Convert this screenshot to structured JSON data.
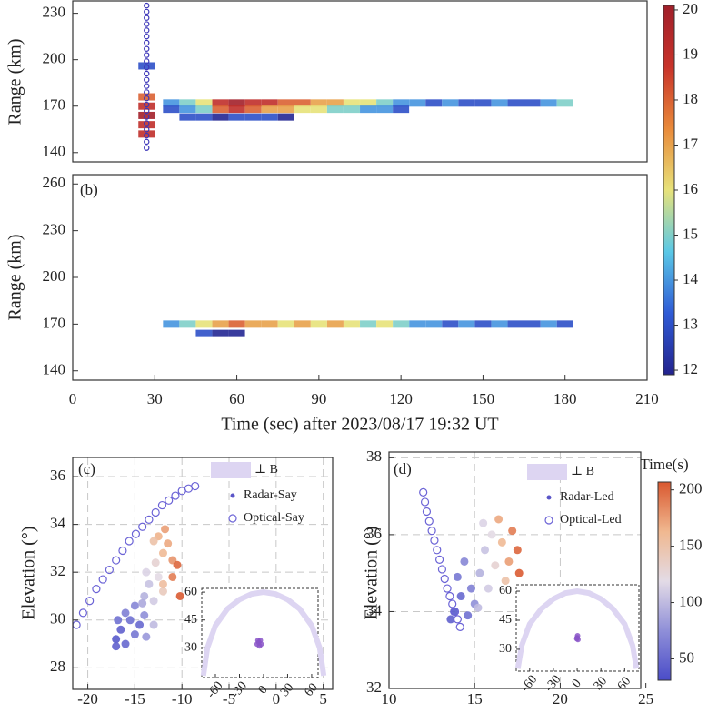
{
  "chart_data": [
    {
      "type": "heatmap",
      "ylabel": "Range (km)",
      "xlim": [
        0,
        210
      ],
      "ylim": [
        134,
        238
      ],
      "yticks": [
        140,
        170,
        200,
        230
      ],
      "cells": {
        "x": [
          36,
          42,
          48,
          54,
          60,
          66,
          72,
          78,
          84,
          90,
          96,
          102,
          108,
          114,
          120,
          126,
          132,
          138,
          144,
          150,
          156,
          162,
          168,
          174,
          180,
          36,
          42,
          48,
          54,
          60,
          66,
          72,
          78,
          84,
          90,
          96,
          102,
          108,
          114,
          120,
          42,
          48,
          54,
          60,
          66,
          72,
          78,
          27,
          27,
          27,
          27,
          27,
          27
        ],
        "y": [
          172,
          172,
          172,
          172,
          172,
          172,
          172,
          172,
          172,
          172,
          172,
          172,
          172,
          172,
          172,
          172,
          172,
          172,
          172,
          172,
          172,
          172,
          172,
          172,
          172,
          168,
          168,
          168,
          168,
          168,
          168,
          168,
          168,
          168,
          168,
          168,
          168,
          168,
          168,
          168,
          163,
          163,
          163,
          163,
          163,
          163,
          163,
          152,
          158,
          164,
          170,
          176,
          196
        ],
        "values": [
          14,
          15,
          16,
          19,
          20,
          19,
          19,
          18,
          18,
          17,
          17,
          16,
          16,
          15,
          14,
          14,
          13,
          14,
          13,
          13,
          14,
          13,
          13,
          14,
          15,
          13,
          14,
          15,
          18,
          19,
          18,
          17,
          17,
          16,
          16,
          15,
          15,
          14,
          14,
          13,
          13,
          13,
          12,
          13,
          13,
          13,
          12,
          19,
          19,
          20,
          19,
          18,
          13
        ]
      },
      "optical": {
        "color": "#3b35b8",
        "x": [
          27,
          27,
          27,
          27,
          27,
          27,
          27,
          27,
          27,
          27,
          27,
          27,
          27,
          27,
          27,
          27,
          27,
          27,
          27,
          27,
          27,
          27,
          27,
          27
        ],
        "y": [
          143,
          147,
          151,
          155,
          159,
          163,
          167,
          171,
          175,
          179,
          183,
          187,
          191,
          195,
          199,
          203,
          207,
          211,
          215,
          219,
          223,
          227,
          231,
          235
        ]
      },
      "colormap": [
        "#23238e",
        "#2f5bd6",
        "#5ac8e6",
        "#e7e27a",
        "#e98a3a",
        "#c8332a",
        "#a01f2a"
      ],
      "clim": [
        11.9,
        20.1
      ],
      "cticks": [
        12,
        13,
        14,
        15,
        16,
        17,
        18,
        19,
        20
      ]
    },
    {
      "type": "heatmap",
      "panel_label": "(b)",
      "ylabel": "Range (km)",
      "xlabel": "Time (sec) after 2023/08/17 19:32 UT",
      "xlim": [
        0,
        210
      ],
      "ylim": [
        134,
        266
      ],
      "xticks": [
        0,
        30,
        60,
        90,
        120,
        150,
        180,
        210
      ],
      "yticks": [
        140,
        170,
        200,
        230,
        260
      ],
      "cells": {
        "x": [
          36,
          42,
          48,
          54,
          60,
          66,
          72,
          78,
          84,
          90,
          96,
          102,
          108,
          114,
          120,
          126,
          132,
          138,
          144,
          150,
          156,
          162,
          168,
          174,
          180,
          48,
          54,
          60
        ],
        "y": [
          170,
          170,
          170,
          170,
          170,
          170,
          170,
          170,
          170,
          170,
          170,
          170,
          170,
          170,
          170,
          170,
          170,
          170,
          170,
          170,
          170,
          170,
          170,
          170,
          170,
          164,
          164,
          164
        ],
        "values": [
          14,
          15,
          16,
          17,
          18,
          17,
          17,
          16,
          17,
          16,
          17,
          16,
          15,
          16,
          15,
          14,
          14,
          13,
          14,
          13,
          14,
          13,
          13,
          14,
          13,
          13,
          12,
          12
        ]
      },
      "colormap": [
        "#23238e",
        "#2f5bd6",
        "#5ac8e6",
        "#e7e27a",
        "#e98a3a",
        "#c8332a",
        "#a01f2a"
      ],
      "clim": [
        11.9,
        20.1
      ]
    },
    {
      "type": "scatter",
      "panel_label": "(c)",
      "ylabel": "Elevation (°)",
      "xlim": [
        -21.6,
        6
      ],
      "ylim": [
        27.1,
        36.8
      ],
      "xticks": [
        -20,
        -15,
        -10,
        -5,
        0,
        5
      ],
      "yticks": [
        28,
        30,
        32,
        34,
        36
      ],
      "grid": true,
      "perp_b": {
        "name": "⊥ B",
        "color": "#ddd5f2"
      },
      "series": [
        {
          "name": "Radar-Say",
          "color": "#5a55c8",
          "x": [
            -17,
            -16.5,
            -16,
            -15.5,
            -15,
            -14.5,
            -16,
            -15,
            -14,
            -17,
            -13.8,
            -16.8,
            -14,
            -13.5,
            -13,
            -12.5,
            -13.8,
            -12.8,
            -14.2,
            -12,
            -13,
            -12,
            -11.5,
            -11,
            -12.5,
            -11,
            -10.5,
            -12,
            -11.8,
            -10.2,
            -13
          ],
          "y": [
            29.2,
            29.6,
            29.0,
            30.0,
            29.4,
            29.8,
            30.3,
            30.6,
            30.2,
            28.9,
            29.3,
            30.0,
            31.0,
            31.5,
            30.8,
            31.8,
            32.0,
            32.4,
            30.7,
            31.2,
            29.8,
            32.8,
            33.2,
            32.5,
            33.5,
            31.8,
            32.3,
            31.5,
            33.8,
            31.0,
            33.3
          ],
          "time": [
            40,
            45,
            50,
            55,
            60,
            50,
            65,
            70,
            75,
            45,
            80,
            55,
            95,
            105,
            110,
            120,
            115,
            130,
            90,
            140,
            100,
            160,
            170,
            180,
            165,
            190,
            200,
            155,
            175,
            205,
            150
          ]
        },
        {
          "name": "Optical-Say",
          "color": "#6b63d6",
          "x": [
            -21.2,
            -20.5,
            -19.8,
            -19.1,
            -18.4,
            -17.7,
            -17.0,
            -16.3,
            -15.6,
            -14.9,
            -14.2,
            -13.5,
            -12.8,
            -12.1,
            -11.4,
            -10.7,
            -10.0,
            -9.3,
            -8.6
          ],
          "y": [
            29.8,
            30.3,
            30.8,
            31.3,
            31.7,
            32.1,
            32.5,
            32.9,
            33.3,
            33.6,
            33.9,
            34.2,
            34.5,
            34.8,
            35.0,
            35.2,
            35.4,
            35.5,
            35.6
          ]
        }
      ],
      "inset": {
        "xlim": [
          -77,
          68
        ],
        "ylim": [
          14,
          62
        ],
        "xticks": [
          -60,
          -30,
          0,
          30,
          60
        ],
        "yticks": [
          30,
          45,
          60
        ],
        "arc": {
          "x": [
            -75,
            -70,
            -60,
            -45,
            -30,
            -15,
            0,
            15,
            30,
            45,
            60,
            70,
            75
          ],
          "y": [
            15,
            30,
            42,
            51,
            56,
            59,
            60,
            59,
            56,
            51,
            42,
            30,
            15
          ]
        },
        "points": {
          "x": [
            -8,
            -6,
            -4,
            -5,
            -3,
            -7
          ],
          "y": [
            32,
            33,
            34,
            31,
            32,
            34
          ]
        }
      },
      "colormap": [
        "#4a4cc8",
        "#8f8fd8",
        "#e3dbe6",
        "#f0b890",
        "#d9582f"
      ],
      "clim": [
        31,
        207
      ]
    },
    {
      "type": "scatter",
      "panel_label": "(d)",
      "ylabel": "Elevation (°)",
      "xlim": [
        10,
        24.7
      ],
      "ylim": [
        32,
        38.15
      ],
      "xticks": [
        10,
        15,
        20,
        25
      ],
      "yticks": [
        32,
        34,
        36,
        38
      ],
      "grid": true,
      "perp_b": {
        "name": "⊥ B",
        "color": "#ddd5f2"
      },
      "series": [
        {
          "name": "Radar-Led",
          "color": "#5a55c8",
          "x": [
            13.8,
            14.2,
            14.6,
            14.0,
            14.8,
            14.4,
            15.0,
            13.6,
            15.3,
            15.6,
            15.8,
            16.0,
            15.5,
            16.2,
            15.2,
            16.6,
            17.0,
            17.2,
            16.8,
            17.5,
            16.4,
            17.6
          ],
          "y": [
            34.0,
            34.4,
            33.9,
            34.9,
            34.6,
            35.3,
            34.2,
            33.8,
            35.0,
            35.6,
            34.6,
            36.0,
            36.3,
            35.2,
            34.1,
            35.8,
            35.3,
            36.1,
            34.8,
            35.6,
            36.4,
            35.0
          ],
          "time": [
            40,
            50,
            55,
            60,
            65,
            70,
            75,
            45,
            95,
            105,
            110,
            120,
            115,
            130,
            100,
            160,
            175,
            190,
            150,
            200,
            170,
            205
          ]
        },
        {
          "name": "Optical-Led",
          "color": "#6b63d6",
          "x": [
            12.0,
            12.1,
            12.2,
            12.35,
            12.5,
            12.65,
            12.8,
            12.95,
            13.1,
            13.25,
            13.4,
            13.55,
            13.7,
            13.85,
            14.0,
            14.15
          ],
          "y": [
            37.1,
            36.85,
            36.6,
            36.35,
            36.1,
            35.85,
            35.6,
            35.35,
            35.1,
            34.85,
            34.6,
            34.4,
            34.2,
            34.0,
            33.8,
            33.6
          ]
        }
      ],
      "inset": {
        "xlim": [
          -77,
          78
        ],
        "ylim": [
          18.7,
          63.3
        ],
        "xticks": [
          -60,
          -30,
          0,
          30,
          60
        ],
        "yticks": [
          30,
          45,
          60
        ],
        "arc": {
          "x": [
            -75,
            -70,
            -60,
            -45,
            -30,
            -15,
            0,
            15,
            30,
            45,
            60,
            70,
            75
          ],
          "y": [
            20,
            32,
            43,
            51,
            56,
            59,
            60,
            59,
            56,
            51,
            43,
            32,
            20
          ]
        },
        "points": {
          "x": [
            0,
            1,
            0.5,
            -0.5
          ],
          "y": [
            36,
            35,
            37,
            35.5
          ]
        }
      },
      "colormap": [
        "#4a4cc8",
        "#8f8fd8",
        "#e3dbe6",
        "#f0b890",
        "#d9582f"
      ],
      "clim": [
        31,
        207
      ],
      "colorbar_label": "Time(s)",
      "cticks": [
        50,
        100,
        150,
        200
      ]
    }
  ]
}
